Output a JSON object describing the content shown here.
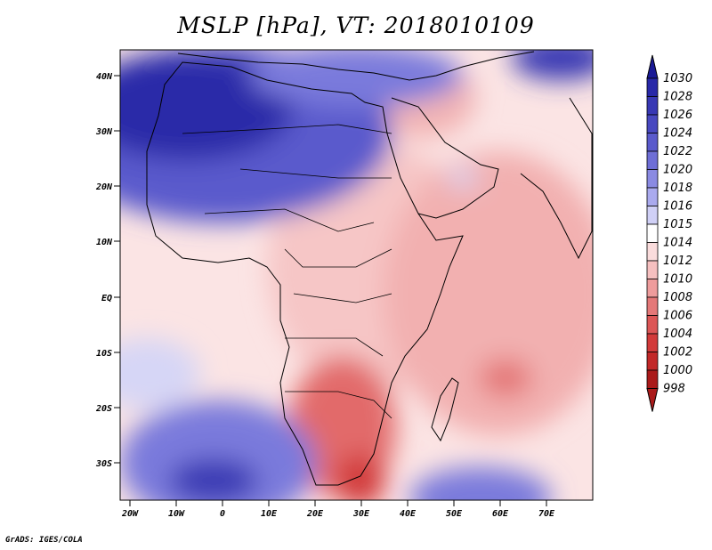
{
  "title": "MSLP [hPa], VT: 2018010109",
  "footer": "GrADS: IGES/COLA",
  "lat_labels": [
    "40N",
    "30N",
    "20N",
    "10N",
    "EQ",
    "10S",
    "20S",
    "30S"
  ],
  "lon_labels": [
    "20W",
    "10W",
    "0",
    "10E",
    "20E",
    "30E",
    "40E",
    "50E",
    "60E",
    "70E"
  ],
  "colorbar": {
    "levels": [
      "1030",
      "1028",
      "1026",
      "1024",
      "1022",
      "1020",
      "1018",
      "1016",
      "1015",
      "1014",
      "1012",
      "1010",
      "1008",
      "1006",
      "1004",
      "1002",
      "1000",
      "998"
    ],
    "colors": [
      "#1a1a96",
      "#2828a8",
      "#3838b4",
      "#4848c0",
      "#5a5acc",
      "#6e6ed6",
      "#8a8ae2",
      "#aaaaee",
      "#d0d0f6",
      "#ffffff",
      "#fadcdc",
      "#f6c0c0",
      "#ee9c9c",
      "#e47878",
      "#dc5656",
      "#d23a3a",
      "#c22828",
      "#aa1a1a"
    ]
  },
  "colors": {
    "high_core": "#1a1a96",
    "high_mid": "#6e6ed6",
    "neutral": "#fbe4e4",
    "low_mid": "#ee9c9c",
    "low_core": "#d23a3a"
  }
}
